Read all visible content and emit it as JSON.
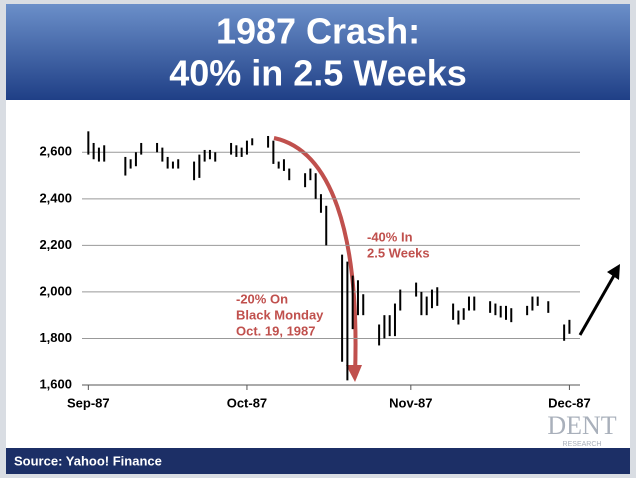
{
  "chart_data": {
    "type": "range",
    "title": [
      "1987 Crash:",
      "40% in 2.5 Weeks"
    ],
    "source": "Source: Yahoo! Finance",
    "logo": [
      "DENT",
      "RESEARCH"
    ],
    "annotations": [
      [
        "-40% In",
        "2.5 Weeks"
      ],
      [
        "-20% On",
        "Black Monday",
        "Oct. 19, 1987"
      ]
    ],
    "color": "#000000",
    "annotation_color": "#c0504d",
    "grid": true,
    "x": [
      0,
      1,
      2,
      3,
      7,
      8,
      9,
      10,
      13,
      14,
      15,
      16,
      17,
      20,
      21,
      22,
      23,
      24,
      27,
      28,
      29,
      30,
      31,
      34,
      35,
      36,
      37,
      38,
      41,
      42,
      43,
      44,
      45,
      48,
      49,
      50,
      51,
      52,
      55,
      56,
      57,
      58,
      59,
      62,
      63,
      64,
      65,
      66,
      69,
      70,
      71,
      72,
      73,
      76,
      77,
      78,
      79,
      80,
      83,
      84,
      85,
      87,
      90,
      91
    ],
    "high": [
      2690,
      2640,
      2620,
      2630,
      2580,
      2570,
      2600,
      2640,
      2640,
      2620,
      2580,
      2560,
      2570,
      2560,
      2590,
      2610,
      2610,
      2600,
      2640,
      2630,
      2620,
      2650,
      2660,
      2670,
      2650,
      2560,
      2570,
      2530,
      2510,
      2530,
      2510,
      2420,
      2370,
      2160,
      2130,
      2070,
      2050,
      1990,
      1860,
      1900,
      1900,
      1950,
      2010,
      2040,
      2000,
      1980,
      2010,
      2020,
      1950,
      1920,
      1930,
      1980,
      1980,
      1960,
      1950,
      1940,
      1940,
      1930,
      1940,
      1980,
      1980,
      1960,
      1860,
      1880
    ],
    "low": [
      2590,
      2570,
      2560,
      2560,
      2500,
      2530,
      2540,
      2590,
      2600,
      2560,
      2530,
      2530,
      2530,
      2480,
      2490,
      2560,
      2570,
      2560,
      2590,
      2580,
      2580,
      2590,
      2630,
      2620,
      2550,
      2530,
      2520,
      2480,
      2450,
      2480,
      2400,
      2340,
      2200,
      1700,
      1620,
      1840,
      1900,
      1900,
      1770,
      1800,
      1810,
      1810,
      1920,
      1980,
      1900,
      1900,
      1930,
      1940,
      1880,
      1860,
      1880,
      1920,
      1920,
      1910,
      1900,
      1890,
      1880,
      1870,
      1900,
      1920,
      1940,
      1910,
      1790,
      1820
    ],
    "xlim": [
      -1.2,
      93
    ],
    "xticks": [
      {
        "value": 0,
        "label": "Sep-87"
      },
      {
        "value": 30,
        "label": "Oct-87"
      },
      {
        "value": 61,
        "label": "Nov-87"
      },
      {
        "value": 91,
        "label": "Dec-87"
      }
    ],
    "ylim": [
      1600,
      2700
    ],
    "yticks": [
      {
        "value": 1600,
        "label": "1,600"
      },
      {
        "value": 1800,
        "label": "1,800"
      },
      {
        "value": 2000,
        "label": "2,000"
      },
      {
        "value": 2200,
        "label": "2,200"
      },
      {
        "value": 2400,
        "label": "2,400"
      },
      {
        "value": 2600,
        "label": "2,600"
      }
    ]
  }
}
